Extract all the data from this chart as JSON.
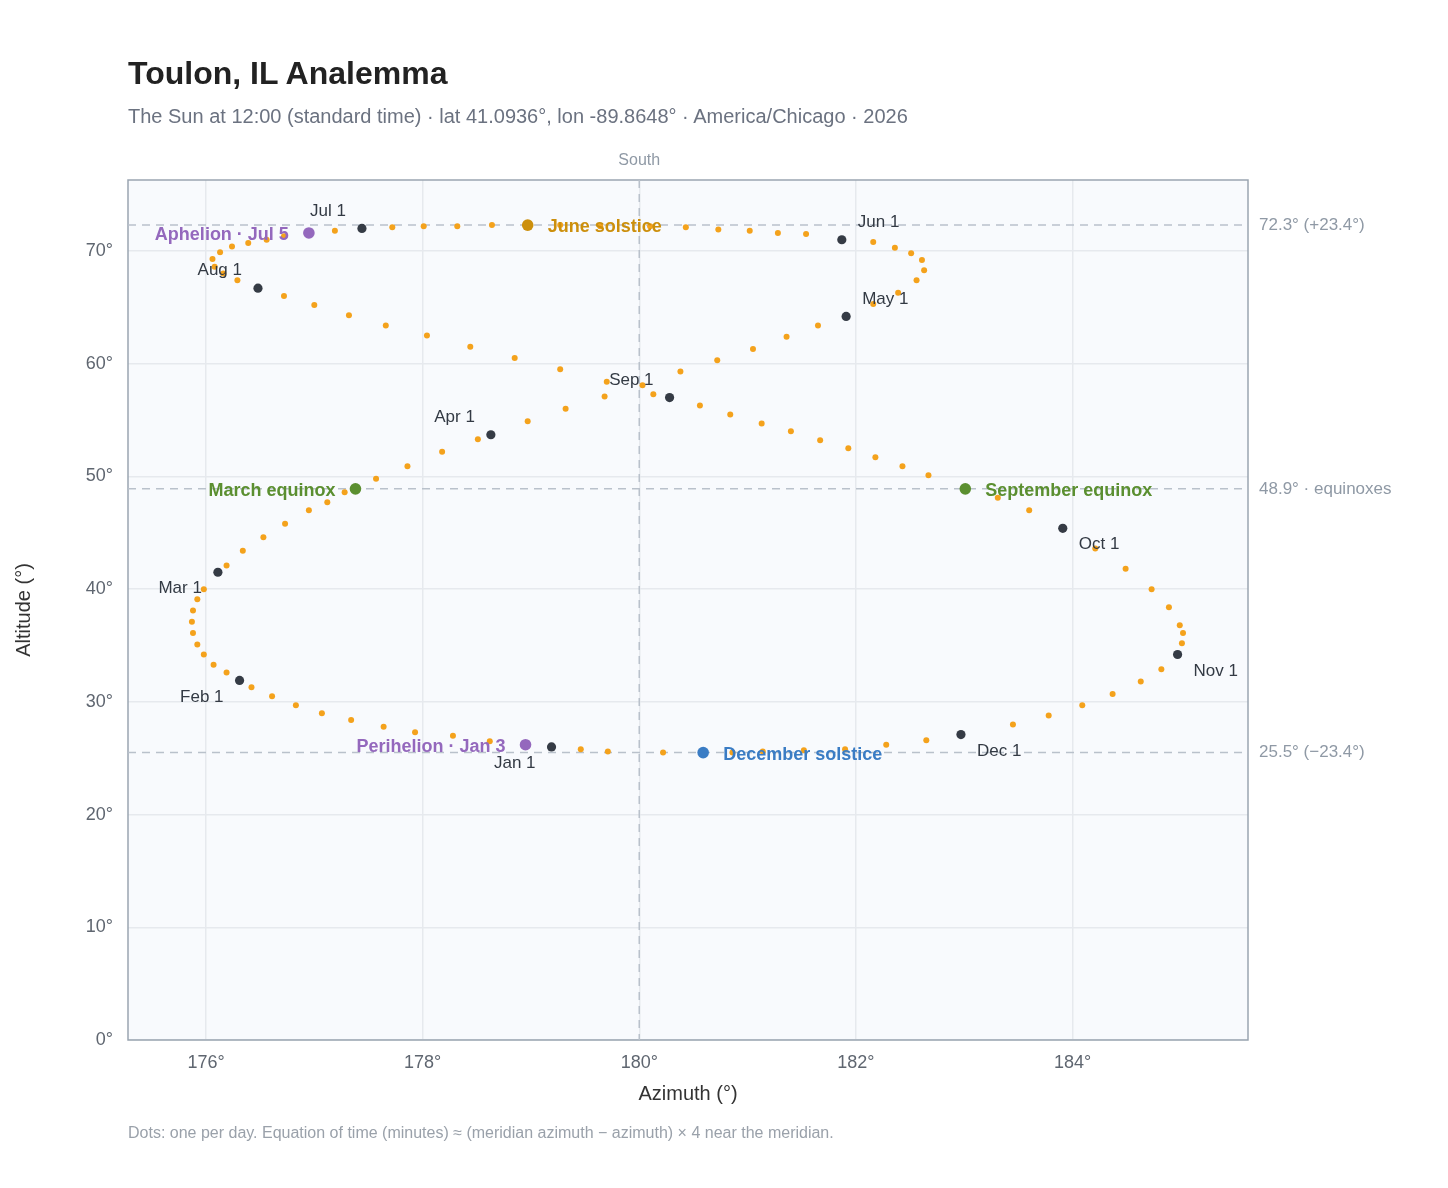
{
  "chart_data": {
    "type": "scatter",
    "title": "Toulon, IL Analemma",
    "subtitle": "The Sun at 12:00 (standard time) · lat 41.0936°, lon -89.8648° · America/Chicago · 2026",
    "xlabel": "Azimuth (°)",
    "ylabel": "Altitude (°)",
    "xlim": [
      175.28,
      185.62
    ],
    "xticks": [
      {
        "value": 176,
        "label": "176°"
      },
      {
        "value": 178,
        "label": "178°"
      },
      {
        "value": 180,
        "label": "180°"
      },
      {
        "value": 182,
        "label": "182°"
      },
      {
        "value": 184,
        "label": "184°"
      }
    ],
    "ylim": [
      0,
      76.3
    ],
    "yticks": [
      {
        "value": 0,
        "label": "0°"
      },
      {
        "value": 10,
        "label": "10°"
      },
      {
        "value": 20,
        "label": "20°"
      },
      {
        "value": 30,
        "label": "30°"
      },
      {
        "value": 40,
        "label": "40°"
      },
      {
        "value": 50,
        "label": "50°"
      },
      {
        "value": 60,
        "label": "60°"
      },
      {
        "value": 70,
        "label": "70°"
      }
    ],
    "grid": true,
    "legend": false,
    "marker": "circle",
    "series": [
      {
        "color": "#f4a21c",
        "x": [
          178.62,
          178.28,
          177.93,
          177.64,
          177.34,
          177.07,
          176.83,
          176.61,
          176.42,
          176.19,
          176.07,
          175.98,
          175.92,
          175.88,
          175.87,
          175.88,
          175.92,
          175.98,
          176.19,
          176.34,
          176.53,
          176.73,
          176.95,
          177.12,
          177.28,
          177.57,
          177.86,
          178.18,
          178.51,
          178.97,
          179.32,
          179.68,
          180.03,
          180.38,
          180.72,
          181.05,
          181.36,
          181.65,
          182.16,
          182.39,
          182.56,
          182.63,
          182.61,
          182.51,
          182.36,
          182.16,
          181.54,
          181.28,
          181.02,
          180.73,
          180.43,
          180.1,
          179.64,
          179.27,
          178.64,
          178.32,
          178.01,
          177.72,
          177.19,
          176.72,
          176.56,
          176.39,
          176.24,
          176.13,
          176.06,
          176.08,
          176.16,
          176.29,
          176.72,
          177.0,
          177.32,
          177.66,
          178.04,
          178.44,
          178.85,
          179.27,
          179.7,
          180.13,
          180.56,
          180.84,
          181.13,
          181.4,
          181.67,
          181.93,
          182.18,
          182.43,
          182.67,
          183.31,
          183.6,
          184.21,
          184.49,
          184.73,
          184.89,
          184.99,
          185.02,
          185.01,
          184.82,
          184.63,
          184.37,
          184.09,
          183.78,
          183.45,
          182.65,
          182.28,
          181.9,
          181.52,
          181.14,
          180.86,
          180.22,
          179.71,
          179.46
        ],
        "values": [
          26.5,
          27.0,
          27.3,
          27.8,
          28.4,
          29.0,
          29.7,
          30.5,
          31.3,
          32.6,
          33.3,
          34.2,
          35.1,
          36.1,
          37.1,
          38.1,
          39.1,
          40.0,
          42.1,
          43.4,
          44.6,
          45.8,
          47.0,
          47.7,
          48.6,
          49.8,
          50.9,
          52.2,
          53.3,
          54.9,
          56.0,
          57.1,
          58.1,
          59.3,
          60.3,
          61.3,
          62.4,
          63.4,
          65.3,
          66.3,
          67.4,
          68.3,
          69.2,
          69.8,
          70.3,
          70.8,
          71.5,
          71.6,
          71.8,
          71.9,
          72.1,
          72.2,
          72.2,
          72.3,
          72.3,
          72.2,
          72.2,
          72.1,
          71.8,
          71.3,
          71.0,
          70.7,
          70.4,
          69.9,
          69.3,
          68.6,
          68.0,
          67.4,
          66.0,
          65.2,
          64.3,
          63.4,
          62.5,
          61.5,
          60.5,
          59.5,
          58.4,
          57.3,
          56.3,
          55.5,
          54.7,
          54.0,
          53.2,
          52.5,
          51.7,
          50.9,
          50.1,
          48.1,
          47.0,
          43.6,
          41.8,
          40.0,
          38.4,
          36.8,
          36.1,
          35.2,
          32.9,
          31.8,
          30.7,
          29.7,
          28.8,
          28.0,
          26.6,
          26.2,
          25.8,
          25.7,
          25.6,
          25.5,
          25.5,
          25.6,
          25.8
        ]
      },
      {
        "color": "#353b45",
        "x": [
          179.19,
          176.31,
          176.11,
          178.63,
          181.91,
          181.87,
          177.44,
          176.48,
          180.28,
          183.91,
          184.97,
          182.97
        ],
        "values": [
          26.0,
          31.9,
          41.5,
          53.7,
          64.2,
          71.0,
          72.0,
          66.7,
          57.0,
          45.4,
          34.2,
          27.1
        ]
      },
      {
        "name": "Perihelion · Jan 3",
        "color": "#9468bd",
        "x": [
          178.95
        ],
        "values": [
          26.2
        ]
      },
      {
        "name": "March equinox",
        "color": "#5b8f30",
        "x": [
          177.38
        ],
        "values": [
          48.9
        ]
      },
      {
        "name": "June solstice",
        "color": "#cc8f0c",
        "x": [
          178.97
        ],
        "values": [
          72.3
        ]
      },
      {
        "name": "Aphelion · Jul 5",
        "color": "#9468bd",
        "x": [
          176.95
        ],
        "values": [
          71.6
        ]
      },
      {
        "name": "September equinox",
        "color": "#5b8f30",
        "x": [
          183.01
        ],
        "values": [
          48.9
        ]
      },
      {
        "name": "December solstice",
        "color": "#3a7cc4",
        "x": [
          180.59
        ],
        "values": [
          25.5
        ]
      }
    ],
    "ref_lines": [
      {
        "axis": "x",
        "value": 180,
        "label": "South",
        "color": "#b9c1cb",
        "line_style": "dashed"
      },
      {
        "axis": "y",
        "value": 72.3,
        "label": "72.3° (+23.4°)",
        "color": "#b9c1cb",
        "line_style": "dashed"
      },
      {
        "axis": "y",
        "value": 48.9,
        "label": "48.9° · equinoxes",
        "color": "#b9c1cb",
        "line_style": "dashed"
      },
      {
        "axis": "y",
        "value": 25.5,
        "label": "25.5° (−23.4°)",
        "color": "#b9c1cb",
        "line_style": "dashed"
      }
    ],
    "annotations": [
      {
        "text": "Jan 1",
        "x": 179.19,
        "y": 26.0
      },
      {
        "text": "Feb 1",
        "x": 176.31,
        "y": 31.9
      },
      {
        "text": "Mar 1",
        "x": 176.11,
        "y": 41.5
      },
      {
        "text": "Apr 1",
        "x": 178.63,
        "y": 53.7
      },
      {
        "text": "May 1",
        "x": 181.91,
        "y": 64.2
      },
      {
        "text": "Jun 1",
        "x": 181.87,
        "y": 71.0
      },
      {
        "text": "Jul 1",
        "x": 177.44,
        "y": 72.0
      },
      {
        "text": "Aug 1",
        "x": 176.48,
        "y": 66.7
      },
      {
        "text": "Sep 1",
        "x": 180.28,
        "y": 57.0
      },
      {
        "text": "Oct 1",
        "x": 183.91,
        "y": 45.4
      },
      {
        "text": "Nov 1",
        "x": 184.97,
        "y": 34.2
      },
      {
        "text": "Dec 1",
        "x": 182.97,
        "y": 27.1
      },
      "Dots: one per day. Equation of time (minutes) ≈ (meridian azimuth − azimuth) × 4 near the meridian."
    ]
  }
}
